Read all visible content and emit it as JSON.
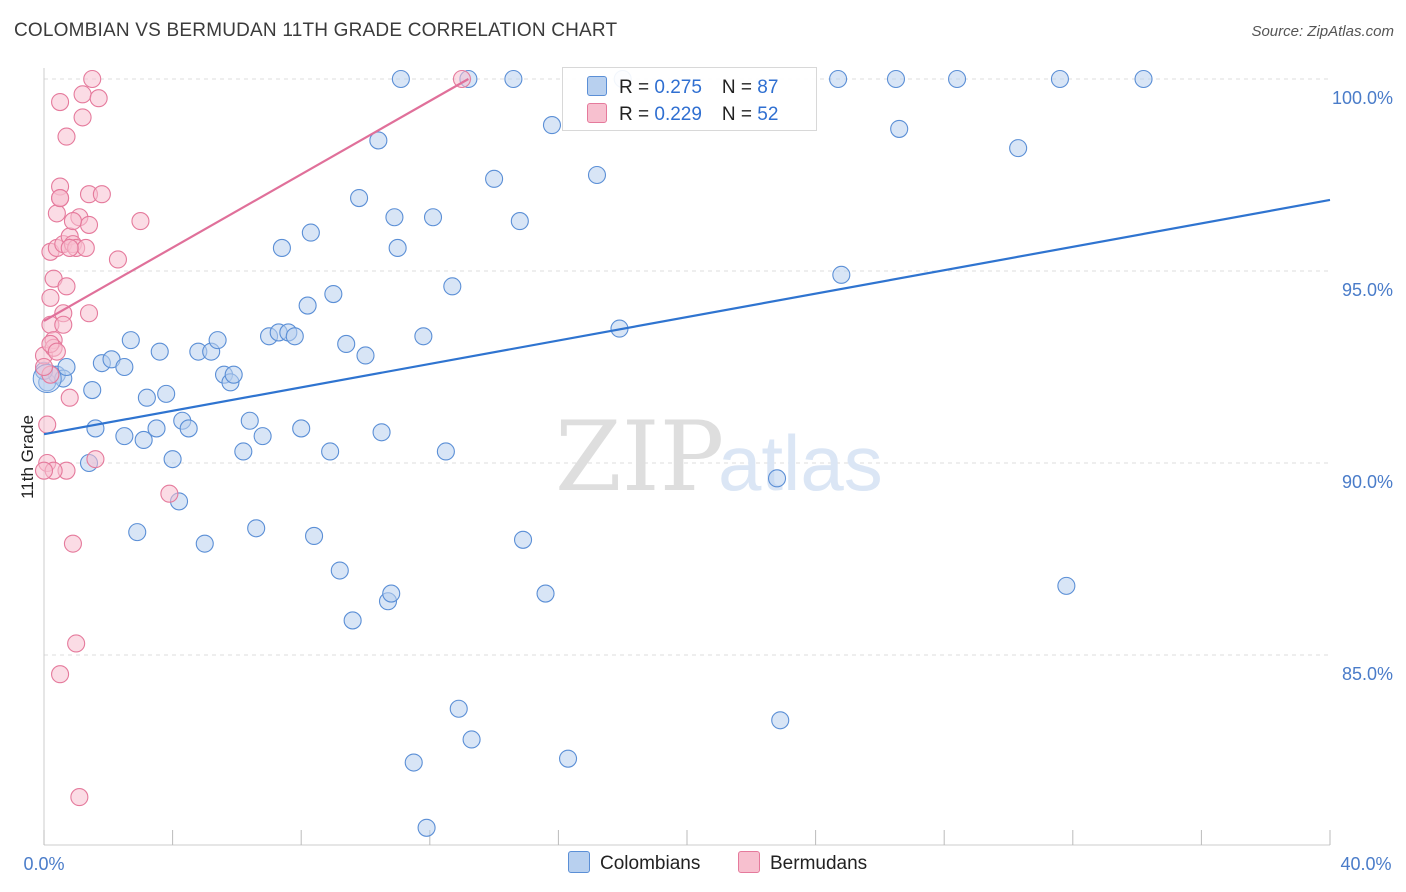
{
  "header": {
    "title": "COLOMBIAN VS BERMUDAN 11TH GRADE CORRELATION CHART",
    "source": "Source: ZipAtlas.com"
  },
  "watermark": {
    "zip": "ZIP",
    "atlas": "atlas"
  },
  "legend_top": {
    "rows": [
      {
        "r_label": "R = ",
        "r_value": "0.275",
        "n_label": "N = ",
        "n_value": "87"
      },
      {
        "r_label": "R = ",
        "r_value": "0.229",
        "n_label": "N = ",
        "n_value": "52"
      }
    ]
  },
  "legend_bottom": {
    "items": [
      "Colombians",
      "Bermudans"
    ]
  },
  "colors": {
    "blue_fill": "#b8d0ef",
    "blue_stroke": "#5b8fd6",
    "blue_line": "#2f74d0",
    "pink_fill": "#f7c0cf",
    "pink_stroke": "#e57a9c",
    "pink_line": "#e0709a",
    "grid": "#dddddd",
    "tick_text": "#4a7cc9"
  },
  "chart_data": {
    "type": "scatter",
    "title": "COLOMBIAN VS BERMUDAN 11TH GRADE CORRELATION CHART",
    "xlabel": "",
    "ylabel": "11th Grade",
    "xlim": [
      0,
      40
    ],
    "ylim": [
      80.0,
      100.8
    ],
    "x_tick_labels": [
      "0.0%",
      "40.0%"
    ],
    "y_ticks": [
      85,
      90,
      95,
      100
    ],
    "y_tick_labels": [
      "85.0%",
      "90.0%",
      "95.0%",
      "100.0%"
    ],
    "grid": true,
    "series": [
      {
        "name": "Colombians",
        "r": 0.275,
        "n": 87,
        "trend": {
          "x": [
            0,
            40
          ],
          "y": [
            90.75,
            96.85
          ]
        },
        "points": [
          [
            0.1,
            92.1
          ],
          [
            0.4,
            92.3
          ],
          [
            0.6,
            92.2
          ],
          [
            0.7,
            92.5
          ],
          [
            1.4,
            90.0
          ],
          [
            1.5,
            91.9
          ],
          [
            1.6,
            90.9
          ],
          [
            1.8,
            92.6
          ],
          [
            2.1,
            92.7
          ],
          [
            2.5,
            92.5
          ],
          [
            2.5,
            90.7
          ],
          [
            2.7,
            93.2
          ],
          [
            2.9,
            88.2
          ],
          [
            3.1,
            90.6
          ],
          [
            3.2,
            91.7
          ],
          [
            3.5,
            90.9
          ],
          [
            3.6,
            92.9
          ],
          [
            3.8,
            91.8
          ],
          [
            4.0,
            90.1
          ],
          [
            4.2,
            89.0
          ],
          [
            4.3,
            91.1
          ],
          [
            4.5,
            90.9
          ],
          [
            4.8,
            92.9
          ],
          [
            5.0,
            87.9
          ],
          [
            5.2,
            92.9
          ],
          [
            5.4,
            93.2
          ],
          [
            5.6,
            92.3
          ],
          [
            5.8,
            92.1
          ],
          [
            5.9,
            92.3
          ],
          [
            6.2,
            90.3
          ],
          [
            6.4,
            91.1
          ],
          [
            6.6,
            88.3
          ],
          [
            6.8,
            90.7
          ],
          [
            7.0,
            93.3
          ],
          [
            7.3,
            93.4
          ],
          [
            7.4,
            95.6
          ],
          [
            7.6,
            93.4
          ],
          [
            7.8,
            93.3
          ],
          [
            8.0,
            90.9
          ],
          [
            8.2,
            94.1
          ],
          [
            8.3,
            96.0
          ],
          [
            8.4,
            88.1
          ],
          [
            8.9,
            90.3
          ],
          [
            9.0,
            94.4
          ],
          [
            9.2,
            87.2
          ],
          [
            9.4,
            93.1
          ],
          [
            9.6,
            85.9
          ],
          [
            9.8,
            96.9
          ],
          [
            10.0,
            92.8
          ],
          [
            10.4,
            98.4
          ],
          [
            10.5,
            90.8
          ],
          [
            10.7,
            86.4
          ],
          [
            10.8,
            86.6
          ],
          [
            11.0,
            95.6
          ],
          [
            10.9,
            96.4
          ],
          [
            11.1,
            100.0
          ],
          [
            11.8,
            93.3
          ],
          [
            11.9,
            80.5
          ],
          [
            12.1,
            96.4
          ],
          [
            12.5,
            90.3
          ],
          [
            12.7,
            94.6
          ],
          [
            12.9,
            83.6
          ],
          [
            13.2,
            100.0
          ],
          [
            13.3,
            82.8
          ],
          [
            14.0,
            97.4
          ],
          [
            14.6,
            100.0
          ],
          [
            14.8,
            96.3
          ],
          [
            14.9,
            88.0
          ],
          [
            15.6,
            86.6
          ],
          [
            15.8,
            98.8
          ],
          [
            16.3,
            82.3
          ],
          [
            17.2,
            97.5
          ],
          [
            17.9,
            93.5
          ],
          [
            11.5,
            82.2
          ],
          [
            18.0,
            100.0
          ],
          [
            22.8,
            89.6
          ],
          [
            22.9,
            83.3
          ],
          [
            24.7,
            100.0
          ],
          [
            24.8,
            94.9
          ],
          [
            26.5,
            100.0
          ],
          [
            26.6,
            98.7
          ],
          [
            28.4,
            100.0
          ],
          [
            30.3,
            98.2
          ],
          [
            31.6,
            100.0
          ],
          [
            31.8,
            86.8
          ],
          [
            34.2,
            100.0
          ],
          [
            0.0,
            92.4
          ]
        ]
      },
      {
        "name": "Bermudans",
        "r": 0.229,
        "n": 52,
        "trend": {
          "x": [
            0.0,
            13.2
          ],
          "y": [
            93.7,
            100.0
          ]
        },
        "points": [
          [
            0.0,
            92.8
          ],
          [
            0.1,
            90.0
          ],
          [
            0.1,
            91.0
          ],
          [
            0.2,
            92.3
          ],
          [
            0.2,
            93.6
          ],
          [
            0.2,
            94.3
          ],
          [
            0.2,
            95.5
          ],
          [
            0.3,
            93.2
          ],
          [
            0.3,
            93.0
          ],
          [
            0.3,
            94.8
          ],
          [
            0.4,
            96.5
          ],
          [
            0.4,
            95.6
          ],
          [
            0.5,
            97.2
          ],
          [
            0.5,
            96.9
          ],
          [
            0.5,
            99.4
          ],
          [
            0.6,
            93.9
          ],
          [
            0.6,
            93.6
          ],
          [
            0.6,
            95.7
          ],
          [
            0.7,
            98.5
          ],
          [
            0.7,
            94.6
          ],
          [
            0.7,
            89.8
          ],
          [
            0.8,
            95.9
          ],
          [
            0.8,
            91.7
          ],
          [
            0.9,
            87.9
          ],
          [
            0.9,
            95.7
          ],
          [
            1.0,
            95.6
          ],
          [
            1.0,
            85.3
          ],
          [
            1.1,
            96.4
          ],
          [
            1.2,
            99.0
          ],
          [
            1.2,
            99.6
          ],
          [
            1.3,
            95.6
          ],
          [
            1.4,
            93.9
          ],
          [
            1.4,
            97.0
          ],
          [
            1.4,
            96.2
          ],
          [
            1.5,
            100.0
          ],
          [
            1.6,
            90.1
          ],
          [
            1.7,
            99.5
          ],
          [
            1.8,
            97.0
          ],
          [
            2.3,
            95.3
          ],
          [
            3.0,
            96.3
          ],
          [
            3.9,
            89.2
          ],
          [
            0.3,
            89.8
          ],
          [
            0.0,
            89.8
          ],
          [
            0.5,
            84.5
          ],
          [
            1.1,
            81.3
          ],
          [
            13.0,
            100.0
          ],
          [
            0.2,
            93.1
          ],
          [
            0.4,
            92.9
          ],
          [
            0.9,
            96.3
          ],
          [
            0.5,
            96.9
          ],
          [
            0.0,
            92.5
          ],
          [
            0.8,
            95.6
          ]
        ]
      }
    ]
  }
}
